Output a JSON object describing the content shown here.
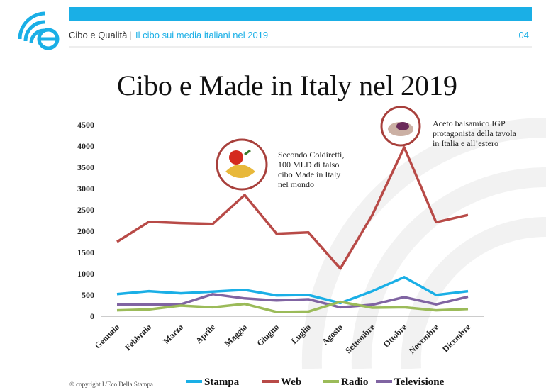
{
  "header": {
    "brand": "Cibo e Qualità",
    "separator": "|",
    "subtitle": "Il cibo sui media italiani nel 2019",
    "page": "04"
  },
  "footer": "© copyright L'Eco Della Stampa",
  "chart_data": {
    "type": "line",
    "title": "Cibo e Made in Italy nel 2019",
    "categories": [
      "Gennaio",
      "Febbraio",
      "Marzo",
      "Aprile",
      "Maggio",
      "Giugno",
      "Luglio",
      "Agosto",
      "Settembre",
      "Ottobre",
      "Novembre",
      "Dicembre"
    ],
    "series": [
      {
        "name": "Stampa",
        "color": "#1aafe6",
        "values": [
          520,
          590,
          540,
          580,
          620,
          490,
          500,
          310,
          590,
          920,
          500,
          590
        ]
      },
      {
        "name": "Web",
        "color": "#b84a47",
        "values": [
          1750,
          2220,
          2190,
          2170,
          2850,
          1940,
          1970,
          1120,
          2380,
          3970,
          2210,
          2380
        ]
      },
      {
        "name": "Radio",
        "color": "#9bbb59",
        "values": [
          140,
          160,
          250,
          210,
          290,
          100,
          110,
          340,
          200,
          210,
          140,
          170
        ]
      },
      {
        "name": "Televisione",
        "color": "#8064a2",
        "values": [
          270,
          270,
          280,
          520,
          420,
          370,
          400,
          210,
          270,
          450,
          280,
          460
        ]
      }
    ],
    "annotations": [
      {
        "lines": [
          "Secondo Coldiretti,",
          "100 MLD di falso",
          "cibo Made in Italy",
          "nel mondo"
        ]
      },
      {
        "lines": [
          "Aceto balsamico IGP",
          "protagonista della tavola",
          "in Italia e all’estero"
        ]
      }
    ],
    "ylim": [
      0,
      4500
    ],
    "yticks": [
      0,
      500,
      1000,
      1500,
      2000,
      2500,
      3000,
      3500,
      4000,
      4500
    ],
    "grid": false,
    "legend": "bottom"
  }
}
